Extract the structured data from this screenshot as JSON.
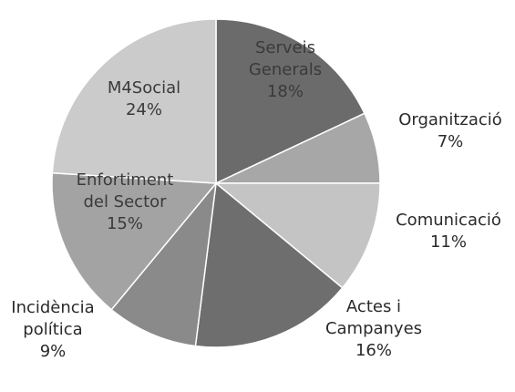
{
  "chart_data": {
    "type": "pie",
    "slices": [
      {
        "label": "Serveis Generals",
        "lines": [
          "Serveis",
          "Generals"
        ],
        "value": 18,
        "display": "18%",
        "color": "#6b6b6b"
      },
      {
        "label": "Organització",
        "lines": [
          "Organització"
        ],
        "value": 7,
        "display": "7%",
        "color": "#a7a7a7"
      },
      {
        "label": "Comunicació",
        "lines": [
          "Comunicació"
        ],
        "value": 11,
        "display": "11%",
        "color": "#c4c4c4"
      },
      {
        "label": "Actes i Campanyes",
        "lines": [
          "Actes i",
          "Campanyes"
        ],
        "value": 16,
        "display": "16%",
        "color": "#6e6e6e"
      },
      {
        "label": "Incidència política",
        "lines": [
          "Incidència",
          "política"
        ],
        "value": 9,
        "display": "9%",
        "color": "#8a8a8a"
      },
      {
        "label": "Enfortiment del Sector",
        "lines": [
          "Enfortiment",
          "del Sector"
        ],
        "value": 15,
        "display": "15%",
        "color": "#a3a3a3"
      },
      {
        "label": "M4Social",
        "lines": [
          "M4Social"
        ],
        "value": 24,
        "display": "24%",
        "color": "#cbcbcb"
      }
    ]
  }
}
